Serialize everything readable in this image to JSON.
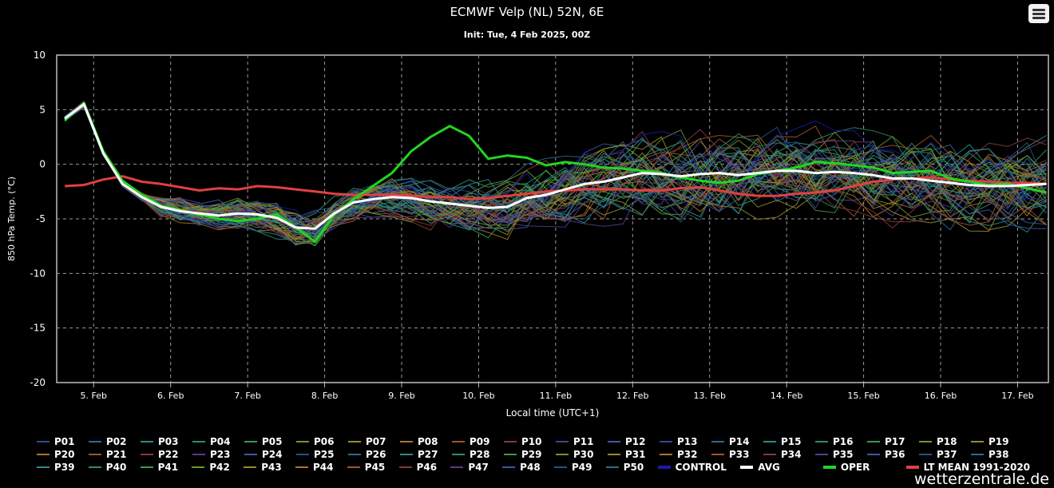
{
  "header": {
    "title": "ECMWF Velp (NL) 52N, 6E",
    "subtitle": "Init: Tue, 4 Feb 2025, 00Z"
  },
  "watermark": "wetterzentrale.de",
  "colors": {
    "avg": "#ffffff",
    "oper": "#22d422",
    "lt_mean": "#e04040",
    "control": "#1a1aa8",
    "grid": "#9a9a9a"
  },
  "chart_data": {
    "type": "line",
    "title": "ECMWF Velp (NL) 52N, 6E",
    "subtitle": "Init: Tue, 4 Feb 2025, 00Z",
    "xlabel": "Local time (UTC+1)",
    "ylabel": "850 hPa Temp. (°C)",
    "ylim": [
      -20,
      10
    ],
    "y_ticks": [
      10,
      5,
      0,
      -5,
      -10,
      -15,
      -20
    ],
    "x_range_days": [
      4.52,
      17.4
    ],
    "x_ticks": [
      {
        "day": 5,
        "label": "5. Feb"
      },
      {
        "day": 6,
        "label": "6. Feb"
      },
      {
        "day": 7,
        "label": "7. Feb"
      },
      {
        "day": 8,
        "label": "8. Feb"
      },
      {
        "day": 9,
        "label": "9. Feb"
      },
      {
        "day": 10,
        "label": "10. Feb"
      },
      {
        "day": 11,
        "label": "11. Feb"
      },
      {
        "day": 12,
        "label": "12. Feb"
      },
      {
        "day": 13,
        "label": "13. Feb"
      },
      {
        "day": 14,
        "label": "14. Feb"
      },
      {
        "day": 15,
        "label": "15. Feb"
      },
      {
        "day": 16,
        "label": "16. Feb"
      },
      {
        "day": 17,
        "label": "17. Feb"
      }
    ],
    "grid": true,
    "legend_position": "bottom",
    "x": [
      4.625,
      4.875,
      5.125,
      5.375,
      5.625,
      5.875,
      6.125,
      6.375,
      6.625,
      6.875,
      7.125,
      7.375,
      7.625,
      7.875,
      8.125,
      8.375,
      8.625,
      8.875,
      9.125,
      9.375,
      9.625,
      9.875,
      10.125,
      10.375,
      10.625,
      10.875,
      11.125,
      11.375,
      11.625,
      11.875,
      12.125,
      12.375,
      12.625,
      12.875,
      13.125,
      13.375,
      13.625,
      13.875,
      14.125,
      14.375,
      14.625,
      14.875,
      15.125,
      15.375,
      15.625,
      15.875,
      16.125,
      16.375,
      16.625,
      16.875,
      17.125,
      17.375
    ],
    "series": [
      {
        "name": "AVG",
        "color": "#ffffff",
        "width": 3,
        "values": [
          4.2,
          5.5,
          1.0,
          -1.8,
          -3.0,
          -3.9,
          -4.3,
          -4.5,
          -4.7,
          -4.5,
          -4.6,
          -4.9,
          -5.8,
          -5.9,
          -4.5,
          -3.5,
          -3.2,
          -3.0,
          -3.1,
          -3.4,
          -3.6,
          -3.8,
          -4.0,
          -3.9,
          -3.1,
          -2.8,
          -2.3,
          -1.8,
          -1.6,
          -1.2,
          -0.8,
          -0.9,
          -1.1,
          -0.9,
          -0.8,
          -1.0,
          -0.8,
          -0.6,
          -0.6,
          -0.8,
          -0.7,
          -0.8,
          -1.0,
          -1.3,
          -1.3,
          -1.5,
          -1.7,
          -1.9,
          -2.0,
          -2.0,
          -1.9,
          -1.8
        ]
      },
      {
        "name": "OPER",
        "color": "#22d422",
        "width": 3,
        "values": [
          4.0,
          5.6,
          1.2,
          -1.5,
          -2.8,
          -3.8,
          -4.2,
          -4.6,
          -5.0,
          -5.2,
          -5.0,
          -4.6,
          -5.8,
          -7.1,
          -4.6,
          -3.2,
          -2.0,
          -0.8,
          1.2,
          2.5,
          3.5,
          2.6,
          0.5,
          0.8,
          0.6,
          -0.1,
          0.2,
          0.0,
          -0.3,
          -0.4,
          -0.6,
          -0.8,
          -1.2,
          -1.5,
          -1.7,
          -1.5,
          -0.9,
          -0.6,
          -0.3,
          0.2,
          0.1,
          -0.1,
          -0.3,
          -0.8,
          -0.7,
          -0.6,
          -1.3,
          -1.6,
          -1.9,
          -1.8,
          -2.2,
          -2.6
        ]
      },
      {
        "name": "LT MEAN 1991-2020",
        "color": "#e04040",
        "width": 3,
        "values": [
          -2.0,
          -1.9,
          -1.4,
          -1.1,
          -1.6,
          -1.8,
          -2.1,
          -2.4,
          -2.2,
          -2.3,
          -2.0,
          -2.1,
          -2.3,
          -2.5,
          -2.7,
          -2.8,
          -2.8,
          -2.8,
          -2.9,
          -3.0,
          -3.0,
          -3.2,
          -3.1,
          -2.9,
          -2.7,
          -2.5,
          -2.4,
          -2.3,
          -2.3,
          -2.3,
          -2.4,
          -2.4,
          -2.2,
          -2.1,
          -2.4,
          -2.7,
          -2.9,
          -2.9,
          -2.7,
          -2.6,
          -2.4,
          -2.0,
          -1.6,
          -1.4,
          -1.3,
          -1.2,
          -1.4,
          -1.5,
          -1.6,
          -1.7,
          -1.7,
          -1.8
        ]
      }
    ]
  },
  "legend": {
    "members": [
      "P01",
      "P02",
      "P03",
      "P04",
      "P05",
      "P06",
      "P07",
      "P08",
      "P09",
      "P10",
      "P11",
      "P12",
      "P13",
      "P14",
      "P15",
      "P16",
      "P17",
      "P18",
      "P19",
      "P20",
      "P21",
      "P22",
      "P23",
      "P24",
      "P25",
      "P26",
      "P27",
      "P28",
      "P29",
      "P30",
      "P31",
      "P32",
      "P33",
      "P34",
      "P35",
      "P36",
      "P37",
      "P38",
      "P39",
      "P40",
      "P41",
      "P42",
      "P43",
      "P44",
      "P45",
      "P46",
      "P47",
      "P48",
      "P49",
      "P50"
    ],
    "extra": [
      {
        "label": "CONTROL",
        "color": "#1a1aa8"
      },
      {
        "label": "AVG",
        "color": "#ffffff"
      },
      {
        "label": "OPER",
        "color": "#22d422"
      },
      {
        "label": "LT MEAN 1991-2020",
        "color": "#e04040"
      }
    ]
  }
}
